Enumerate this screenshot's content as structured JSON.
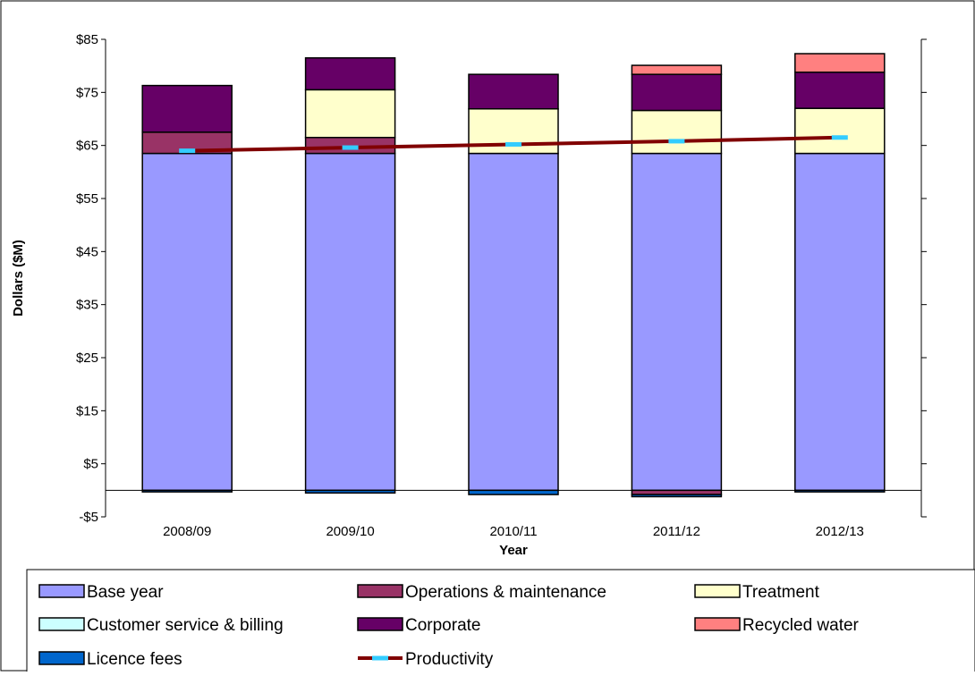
{
  "chart_data": {
    "type": "bar",
    "stacked": true,
    "categories": [
      "2008/09",
      "2009/10",
      "2010/11",
      "2011/12",
      "2012/13"
    ],
    "ylabel": "Dollars ($M)",
    "xlabel": "Year",
    "ylim": [
      -5,
      85
    ],
    "yticks": [
      "$85",
      "$75",
      "$65",
      "$55",
      "$45",
      "$35",
      "$25",
      "$15",
      "$5",
      "-$5"
    ],
    "grid": false,
    "legend_position": "bottom",
    "series": [
      {
        "name": "Base year",
        "color": "#9999ff",
        "values": [
          63.5,
          63.5,
          63.5,
          63.5,
          63.5
        ]
      },
      {
        "name": "Operations & maintenance",
        "color": "#993366",
        "values": [
          4.0,
          3.0,
          0.0,
          -0.8,
          0.0
        ]
      },
      {
        "name": "Treatment",
        "color": "#ffffcc",
        "values": [
          0.0,
          9.0,
          8.4,
          8.1,
          8.5
        ]
      },
      {
        "name": "Customer service & billing",
        "color": "#ccffff",
        "values": [
          0.0,
          0.0,
          0.0,
          0.0,
          0.0
        ]
      },
      {
        "name": "Corporate",
        "color": "#660066",
        "values": [
          8.8,
          6.0,
          6.5,
          6.8,
          6.8
        ]
      },
      {
        "name": "Recycled water",
        "color": "#ff8080",
        "values": [
          0.0,
          0.0,
          0.0,
          1.7,
          3.5
        ]
      },
      {
        "name": "Licence fees",
        "color": "#0066cc",
        "values": [
          -0.3,
          -0.5,
          -0.8,
          -0.4,
          -0.3
        ]
      }
    ],
    "line_series": {
      "name": "Productivity",
      "color": "#800000",
      "marker_color": "#33ccff",
      "values": [
        64.0,
        64.6,
        65.2,
        65.8,
        66.5
      ]
    }
  }
}
